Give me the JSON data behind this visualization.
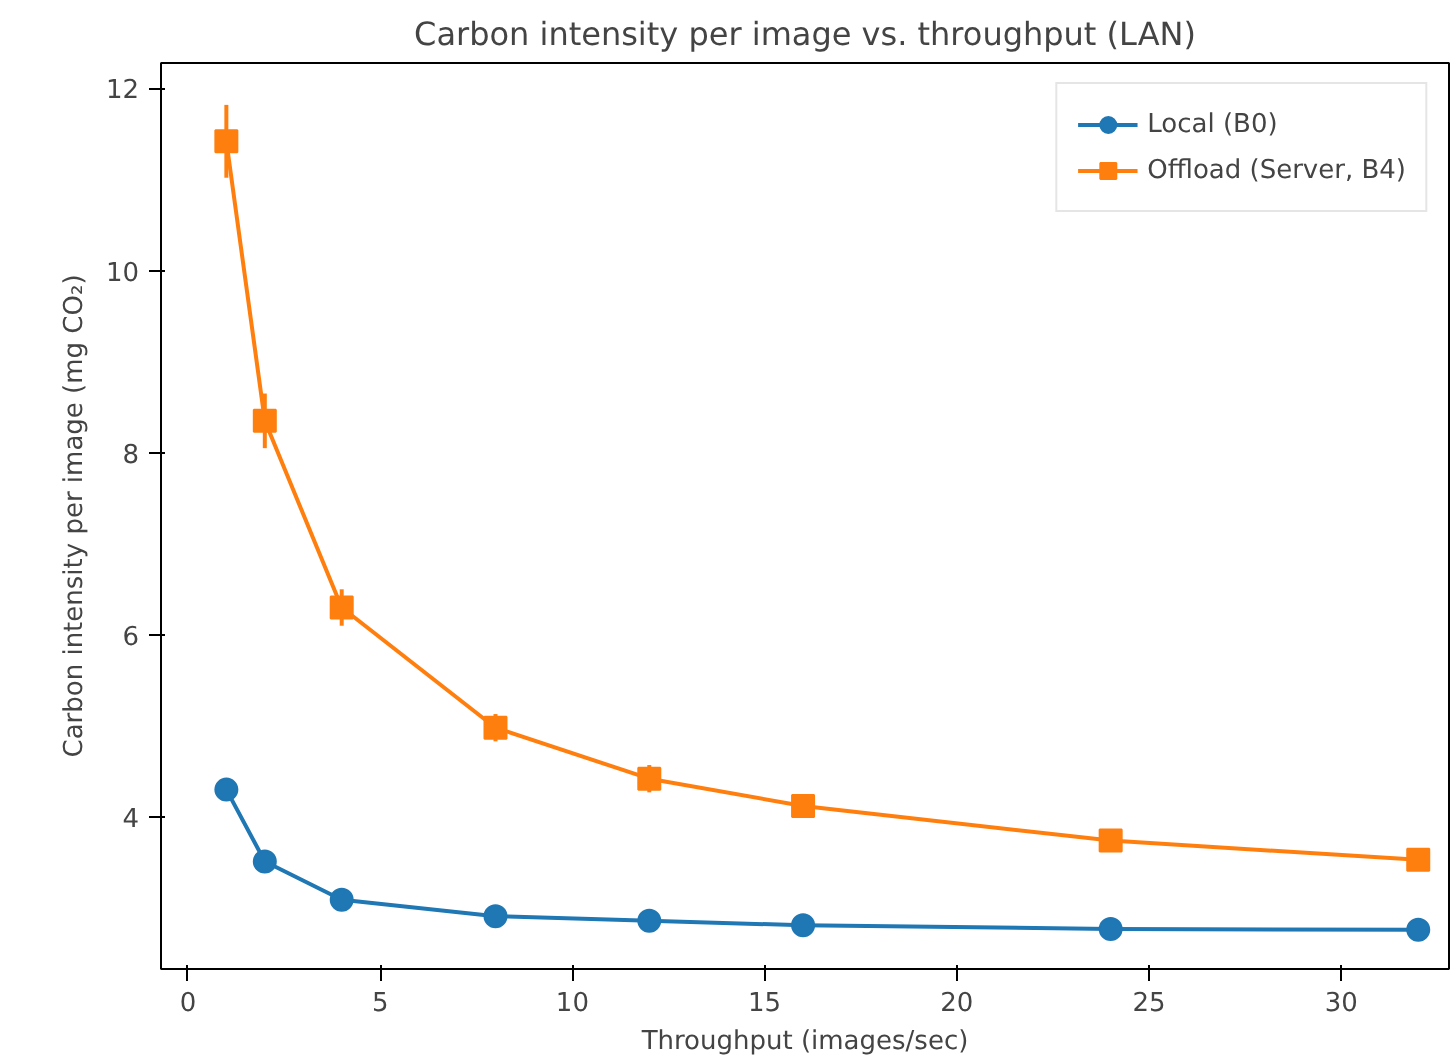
{
  "chart_data": {
    "type": "line",
    "title": "Carbon intensity per image vs. throughput (LAN)",
    "xlabel": "Throughput (images/sec)",
    "ylabel": "Carbon intensity per image (mg CO₂)",
    "x": [
      1,
      2,
      4,
      8,
      12,
      16,
      24,
      32
    ],
    "series": [
      {
        "name": "Local (B0)",
        "color": "#1f77b4",
        "marker": "circle",
        "values": [
          4.3,
          3.51,
          3.09,
          2.91,
          2.86,
          2.81,
          2.77,
          2.76
        ],
        "errors": [
          0.05,
          0.05,
          0.04,
          0.03,
          0.03,
          0.03,
          0.03,
          0.03
        ]
      },
      {
        "name": "Offload (Server, B4)",
        "color": "#ff7f0e",
        "marker": "square",
        "values": [
          11.42,
          8.35,
          6.3,
          4.98,
          4.42,
          4.12,
          3.74,
          3.53
        ],
        "errors": [
          0.4,
          0.3,
          0.2,
          0.15,
          0.15,
          0.12,
          0.1,
          0.1
        ]
      }
    ],
    "xlim": [
      -0.7,
      32.8
    ],
    "ylim": [
      2.33,
      12.28
    ],
    "xticks": [
      0,
      5,
      10,
      15,
      20,
      25,
      30
    ],
    "yticks": [
      4,
      6,
      8,
      10,
      12
    ],
    "legend": "top right",
    "grid": false,
    "line_style": "solid"
  }
}
